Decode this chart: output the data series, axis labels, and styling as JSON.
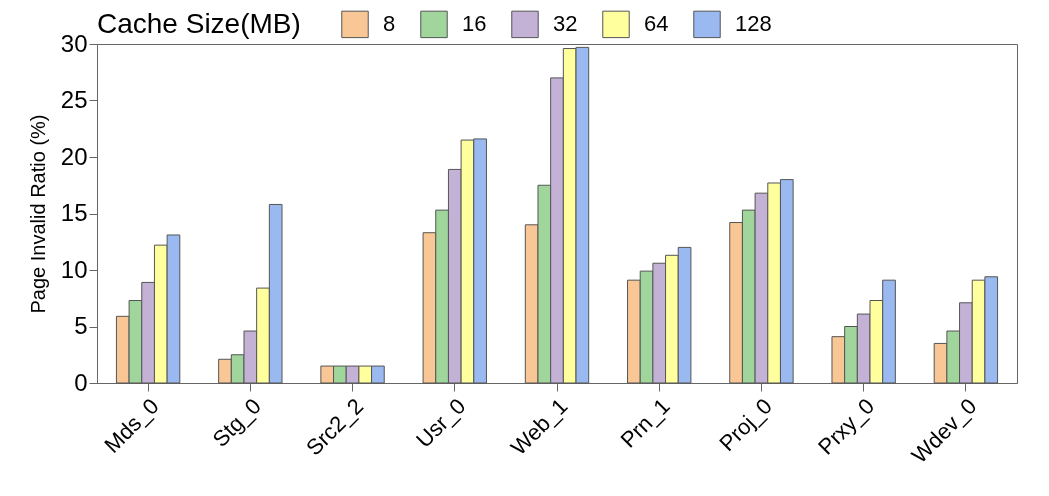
{
  "chart_data": {
    "type": "bar",
    "ylabel": "Page Invalid Ratio (%)",
    "legend_title": "Cache Size(MB)",
    "categories": [
      "Mds_0",
      "Stg_0",
      "Src2_2",
      "Usr_0",
      "Web_1",
      "Prn_1",
      "Proj_0",
      "Prxy_0",
      "Wdev_0"
    ],
    "series": [
      {
        "name": "8",
        "color": "#f9c795",
        "values": [
          5.9,
          2.1,
          1.5,
          13.3,
          14.0,
          9.1,
          14.2,
          4.1,
          3.5
        ]
      },
      {
        "name": "16",
        "color": "#a0d69c",
        "values": [
          7.3,
          2.5,
          1.5,
          15.3,
          17.5,
          9.9,
          15.3,
          5.0,
          4.6
        ]
      },
      {
        "name": "32",
        "color": "#c3b2d6",
        "values": [
          8.9,
          4.6,
          1.5,
          18.9,
          27.0,
          10.6,
          16.8,
          6.1,
          7.1
        ]
      },
      {
        "name": "64",
        "color": "#ffff9e",
        "values": [
          12.2,
          8.4,
          1.5,
          21.5,
          29.6,
          11.3,
          17.7,
          7.3,
          9.1
        ]
      },
      {
        "name": "128",
        "color": "#99b9f0",
        "values": [
          13.1,
          15.8,
          1.5,
          21.6,
          29.7,
          12.0,
          18.0,
          9.1,
          9.4
        ]
      }
    ],
    "ylim": [
      0,
      30
    ],
    "yticks": [
      0,
      5,
      10,
      15,
      20,
      25,
      30
    ],
    "grid": false,
    "legend": "top"
  }
}
